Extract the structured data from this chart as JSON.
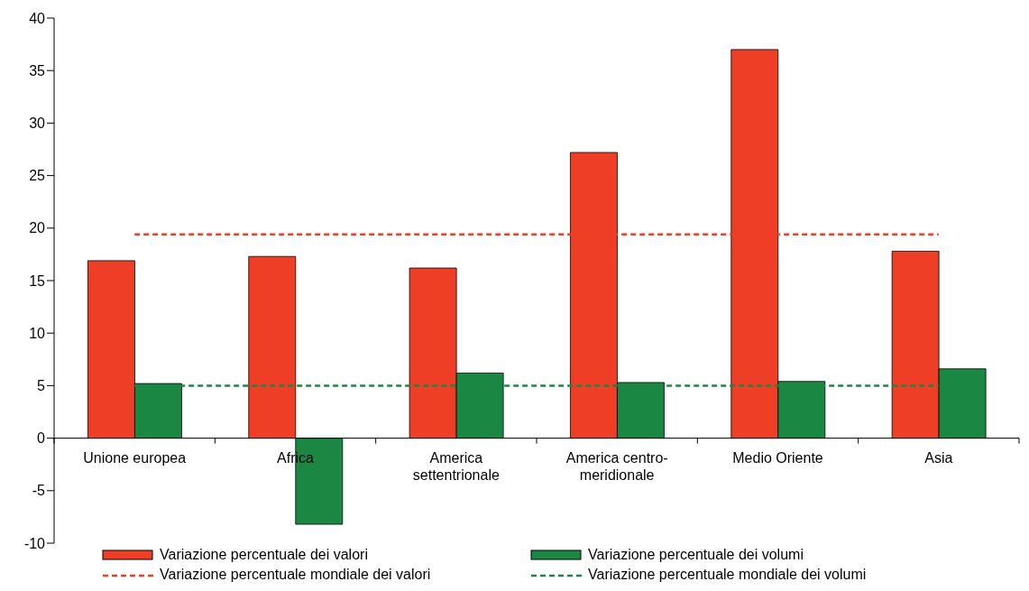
{
  "chart_data": {
    "type": "bar",
    "categories": [
      "Unione europea",
      "Africa",
      "America settentrionale",
      "America centro-meridionale",
      "Medio Oriente",
      "Asia"
    ],
    "series": [
      {
        "name": "Variazione percentuale dei valori",
        "color": "#ee3e25",
        "values": [
          16.9,
          17.3,
          16.2,
          27.2,
          37.0,
          17.8
        ]
      },
      {
        "name": "Variazione percentuale dei volumi",
        "color": "#1a8743",
        "values": [
          5.2,
          -8.2,
          6.2,
          5.3,
          5.4,
          6.6
        ]
      }
    ],
    "ylim": [
      -10,
      40
    ],
    "yticks": [
      -10,
      -5,
      0,
      5,
      10,
      15,
      20,
      25,
      30,
      35,
      40
    ],
    "legend": "bottom",
    "ref_lines": [
      {
        "axis": "y",
        "value": 19.4,
        "label": "Variazione percentuale mondiale dei valori",
        "color": "#ee3e25",
        "line_style": "dashed"
      },
      {
        "axis": "y",
        "value": 5.0,
        "label": "Variazione percentuale mondiale dei volumi",
        "color": "#1a8743",
        "line_style": "dashed"
      }
    ]
  }
}
